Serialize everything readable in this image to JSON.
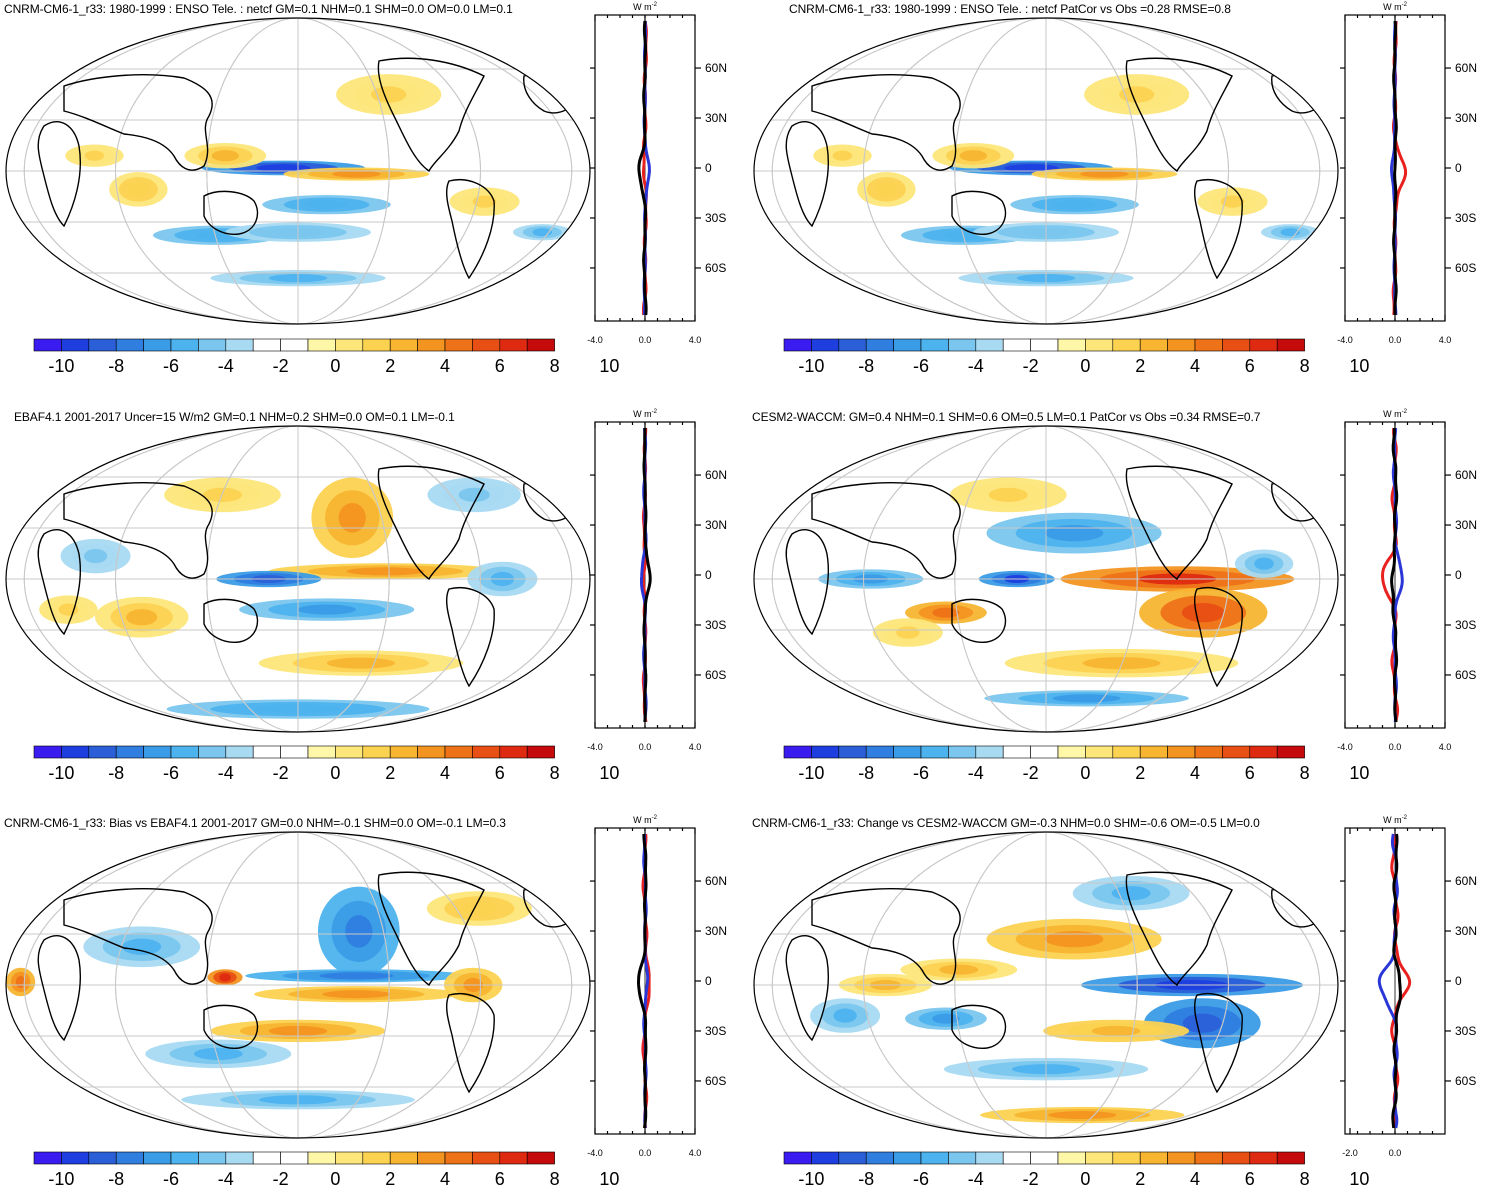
{
  "palette": [
    "#3a1cf0",
    "#1e3ee0",
    "#2b5fd8",
    "#2f7ee0",
    "#3a9ce6",
    "#4db3ee",
    "#7ac6ee",
    "#a8daf2",
    "#ffffff",
    "#ffffff",
    "#fff7a8",
    "#fde67a",
    "#fcd251",
    "#f7b531",
    "#f39420",
    "#ee7218",
    "#e84f14",
    "#de2a10",
    "#c40a0a"
  ],
  "line_colors": {
    "red": "#e8211e",
    "blue": "#2a37d6",
    "black": "#000000"
  },
  "colorbar_labels": [
    "-10",
    "-8",
    "-6",
    "-4",
    "-2",
    "0",
    "2",
    "4",
    "6",
    "8",
    "10"
  ],
  "lat_labels": [
    "60N",
    "30N",
    "0",
    "30S",
    "60S"
  ],
  "units": "W m",
  "units_exp": "-2",
  "panels": [
    {
      "title": "CNRM-CM6-1_r33: 1980-1999 : ENSO Tele. : netcf GM=0.1 NHM=0.1 SHM=0.0 OM=0.0 LM=0.1",
      "xticks": [
        "-4.0",
        "0.0",
        "4.0"
      ],
      "pattern": "enso"
    },
    {
      "title": "CNRM-CM6-1_r33: 1980-1999 : ENSO Tele. : netcf PatCor vs Obs =0.28 RMSE=0.8",
      "xticks": [
        "-4.0",
        "0.0",
        "4.0"
      ],
      "pattern": "enso"
    },
    {
      "title": "EBAF4.1 2001-2017 Uncer=15 W/m2 GM=0.1 NHM=0.2 SHM=0.0 OM=0.1 LM=-0.1",
      "xticks": [
        "-4.0",
        "0.0",
        "4.0"
      ],
      "pattern": "obs"
    },
    {
      "title": "CESM2-WACCM: GM=0.4 NHM=0.1 SHM=0.6 OM=0.5 LM=0.1 PatCor vs Obs =0.34 RMSE=0.7",
      "xticks": [
        "-4.0",
        "0.0",
        "4.0"
      ],
      "pattern": "cesm"
    },
    {
      "title": "CNRM-CM6-1_r33: Bias vs EBAF4.1 2001-2017 GM=0.0 NHM=-0.1 SHM=0.0 OM=-0.1 LM=0.3",
      "xticks": [
        "-4.0",
        "0.0",
        "4.0"
      ],
      "pattern": "bias"
    },
    {
      "title": "CNRM-CM6-1_r33: Change vs CESM2-WACCM GM=-0.3 NHM=0.0 SHM=-0.6 OM=-0.5 LM=0.0",
      "xticks": [
        "-2.0",
        "0.0"
      ],
      "pattern": "change"
    }
  ]
}
